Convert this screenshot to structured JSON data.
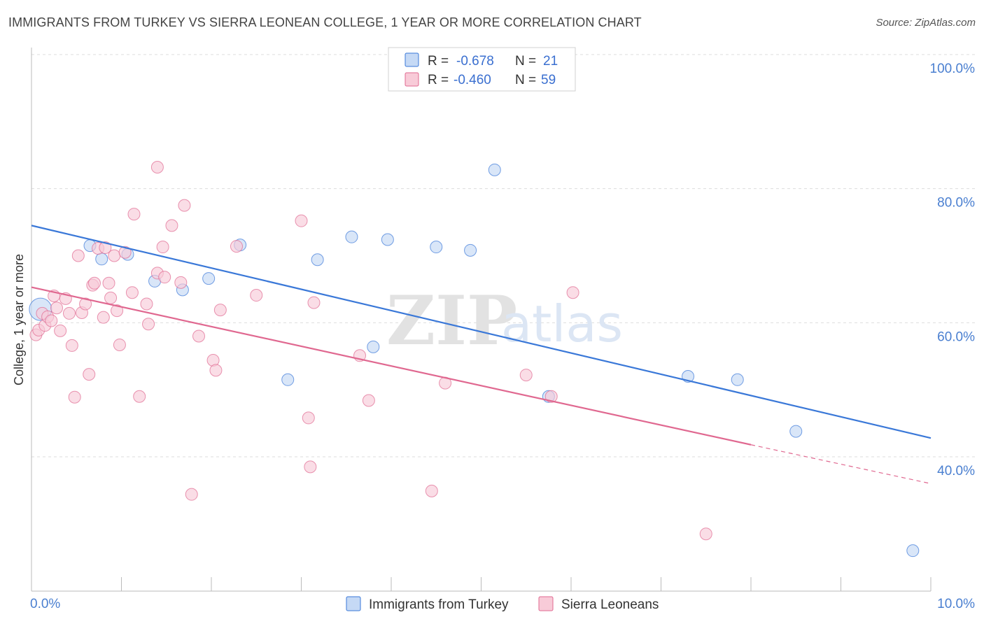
{
  "title": "IMMIGRANTS FROM TURKEY VS SIERRA LEONEAN COLLEGE, 1 YEAR OR MORE CORRELATION CHART",
  "source": "Source: ZipAtlas.com",
  "watermark": {
    "zip": "ZIP",
    "atlas": "atlas"
  },
  "colors": {
    "turkey": "#3a78d8",
    "turkey_fill": "#c5d9f5",
    "sierra": "#e06890",
    "sierra_fill": "#f8cbd8",
    "axis_text": "#4a7fd0",
    "grid": "#dddddd"
  },
  "stats": {
    "turkey": {
      "r_label": "R =",
      "r_value": "-0.678",
      "n_label": "N =",
      "n_value": "21"
    },
    "sierra": {
      "r_label": "R =",
      "r_value": "-0.460",
      "n_label": "N =",
      "n_value": "59"
    }
  },
  "legend": {
    "turkey": "Immigrants from Turkey",
    "sierra": "Sierra Leoneans"
  },
  "chart_data": {
    "type": "scatter",
    "ylabel": "College, 1 year or more",
    "xlim": [
      0,
      10
    ],
    "ylim": [
      22,
      102
    ],
    "x_tick_labels": [
      {
        "value": 0,
        "label": "0.0%"
      },
      {
        "value": 10,
        "label": "10.0%"
      }
    ],
    "y_tick_labels": [
      {
        "value": 100,
        "label": "100.0%"
      },
      {
        "value": 80,
        "label": "80.0%"
      },
      {
        "value": 60,
        "label": "60.0%"
      },
      {
        "value": 40,
        "label": "40.0%"
      }
    ],
    "grid": true,
    "series": [
      {
        "name": "Immigrants from Turkey",
        "key": "turkey",
        "points": [
          [
            0.1,
            62.0,
            "large"
          ],
          [
            0.65,
            71.5
          ],
          [
            0.78,
            69.5
          ],
          [
            1.07,
            70.2
          ],
          [
            1.37,
            66.2
          ],
          [
            1.68,
            64.9
          ],
          [
            1.97,
            66.6
          ],
          [
            2.32,
            71.6
          ],
          [
            2.85,
            51.5
          ],
          [
            3.18,
            69.4
          ],
          [
            3.56,
            72.8
          ],
          [
            3.96,
            72.4
          ],
          [
            3.8,
            56.4
          ],
          [
            4.5,
            71.3
          ],
          [
            4.88,
            70.8
          ],
          [
            5.15,
            82.8
          ],
          [
            5.75,
            49.0
          ],
          [
            7.3,
            52.0
          ],
          [
            7.85,
            51.5
          ],
          [
            8.5,
            43.8
          ],
          [
            9.8,
            26.0
          ]
        ],
        "trend": {
          "x0": 0.0,
          "y0": 74.5,
          "x1": 10.0,
          "y1": 42.8
        }
      },
      {
        "name": "Sierra Leoneans",
        "key": "sierra",
        "points": [
          [
            0.05,
            58.2
          ],
          [
            0.08,
            58.9
          ],
          [
            0.12,
            61.4
          ],
          [
            0.15,
            59.6
          ],
          [
            0.18,
            60.9
          ],
          [
            0.22,
            60.3
          ],
          [
            0.25,
            64.0
          ],
          [
            0.28,
            62.2
          ],
          [
            0.32,
            58.8
          ],
          [
            0.38,
            63.6
          ],
          [
            0.42,
            61.4
          ],
          [
            0.45,
            56.6
          ],
          [
            0.48,
            48.9
          ],
          [
            0.52,
            70.0
          ],
          [
            0.56,
            61.5
          ],
          [
            0.6,
            62.8
          ],
          [
            0.64,
            52.3
          ],
          [
            0.68,
            65.6
          ],
          [
            0.7,
            65.9
          ],
          [
            0.74,
            71.1
          ],
          [
            0.8,
            60.8
          ],
          [
            0.82,
            71.2
          ],
          [
            0.86,
            65.9
          ],
          [
            0.88,
            63.7
          ],
          [
            0.92,
            70.0
          ],
          [
            0.95,
            61.8
          ],
          [
            0.98,
            56.7
          ],
          [
            1.04,
            70.5
          ],
          [
            1.12,
            64.5
          ],
          [
            1.14,
            76.2
          ],
          [
            1.2,
            49.0
          ],
          [
            1.28,
            62.8
          ],
          [
            1.3,
            59.8
          ],
          [
            1.4,
            67.4
          ],
          [
            1.46,
            71.3
          ],
          [
            1.48,
            66.8
          ],
          [
            1.56,
            74.5
          ],
          [
            1.66,
            66.0
          ],
          [
            1.7,
            77.5
          ],
          [
            1.78,
            34.4
          ],
          [
            1.86,
            58.0
          ],
          [
            2.1,
            61.9
          ],
          [
            2.02,
            54.4
          ],
          [
            2.05,
            52.9
          ],
          [
            2.28,
            71.4
          ],
          [
            2.5,
            64.1
          ],
          [
            3.0,
            75.2
          ],
          [
            3.08,
            45.8
          ],
          [
            3.1,
            38.5
          ],
          [
            3.14,
            63.0
          ],
          [
            3.65,
            55.1
          ],
          [
            3.75,
            48.4
          ],
          [
            4.45,
            34.9
          ],
          [
            4.6,
            51.0
          ],
          [
            5.5,
            52.2
          ],
          [
            5.78,
            49.0
          ],
          [
            6.02,
            64.5
          ],
          [
            7.5,
            28.5
          ],
          [
            1.4,
            83.2
          ]
        ],
        "trend": {
          "x0": 0.0,
          "y0": 65.3,
          "x1": 8.0,
          "y1": 41.8
        },
        "trend_dashed": {
          "x0": 8.0,
          "y0": 41.8,
          "x1": 10.0,
          "y1": 36.0
        }
      }
    ]
  }
}
